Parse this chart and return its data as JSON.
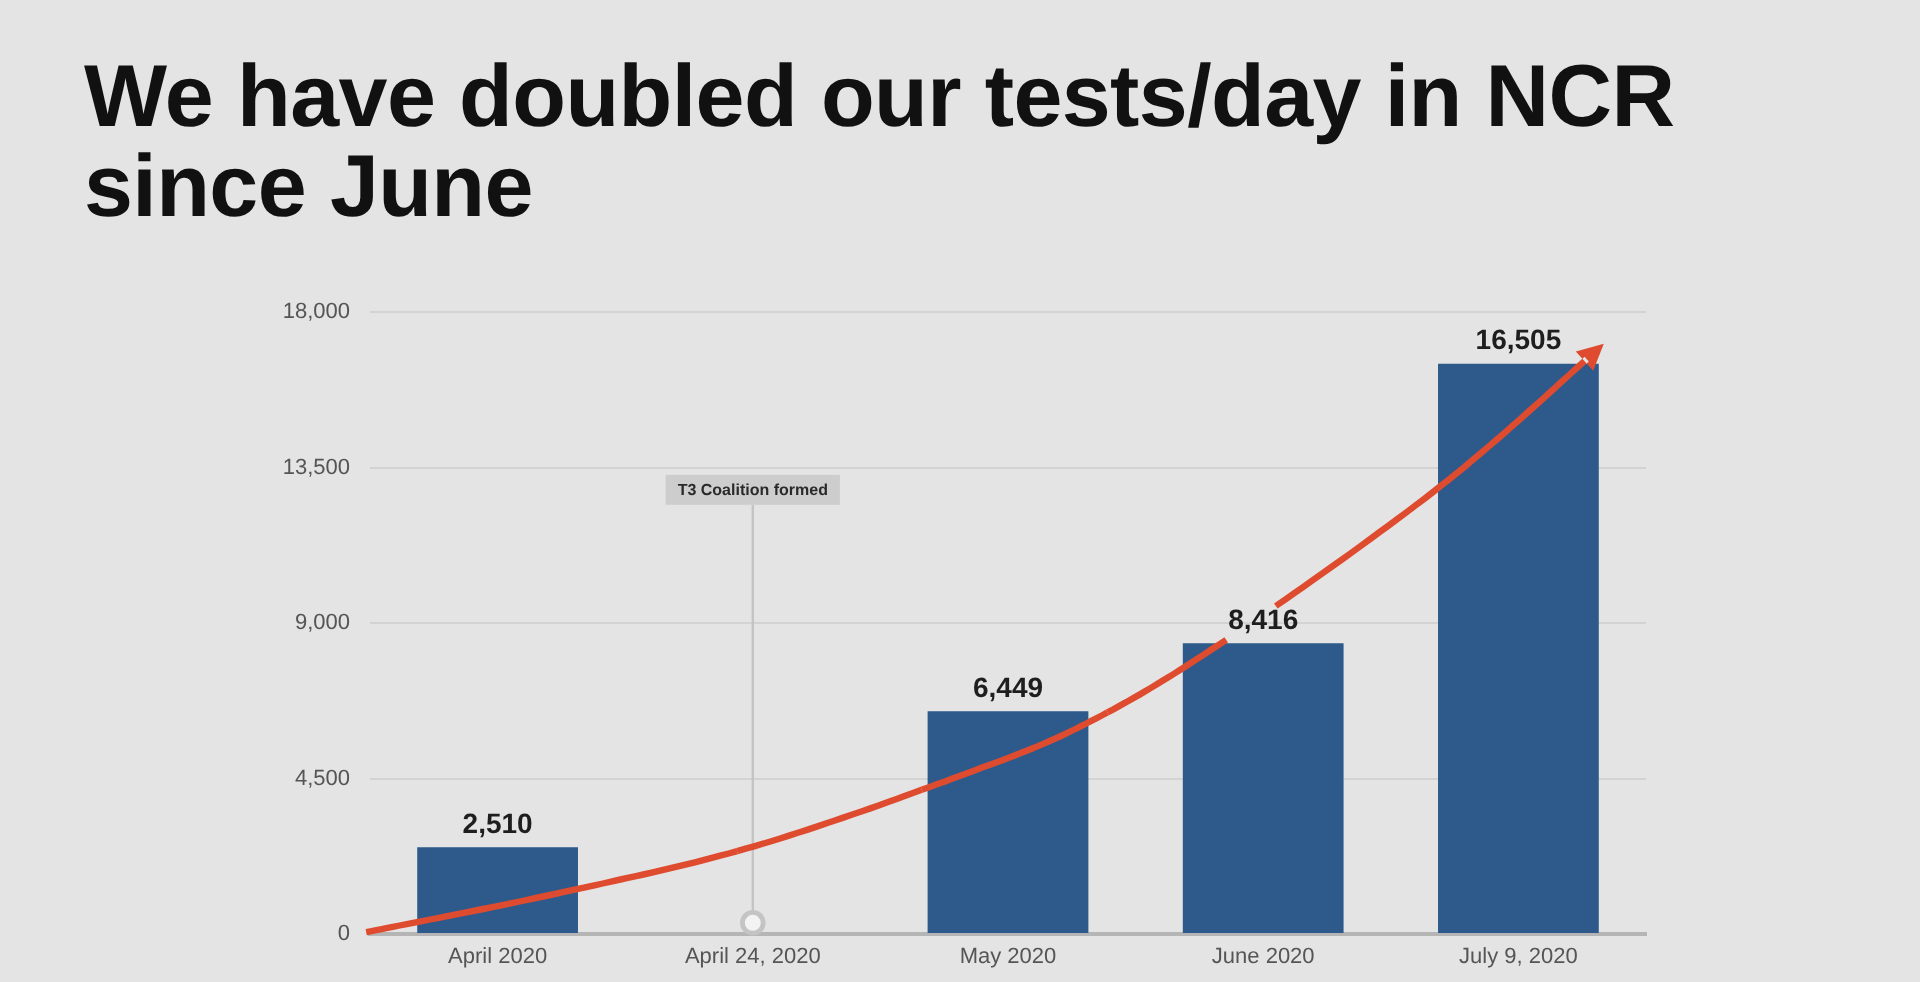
{
  "chart_data": {
    "type": "bar",
    "title": "We have doubled our tests/day in NCR since June",
    "categories": [
      "April 2020",
      "April 24, 2020",
      "May 2020",
      "June 2020",
      "July 9, 2020"
    ],
    "values": [
      2510,
      null,
      6449,
      8416,
      16505
    ],
    "value_labels": [
      "2,510",
      null,
      "6,449",
      "8,416",
      "16,505"
    ],
    "color": "#2e5a8b",
    "ylim": [
      0,
      18000
    ],
    "yticks": [
      {
        "value": 0,
        "label": "0"
      },
      {
        "value": 4500,
        "label": "4,500"
      },
      {
        "value": 9000,
        "label": "9,000"
      },
      {
        "value": 13500,
        "label": "13,500"
      },
      {
        "value": 18000,
        "label": "18,000"
      }
    ],
    "grid": "y",
    "ref_lines": [
      {
        "axis": "x",
        "value": "April 24, 2020",
        "label": "T3 Coalition formed",
        "color": "#c4c4c4"
      }
    ]
  }
}
